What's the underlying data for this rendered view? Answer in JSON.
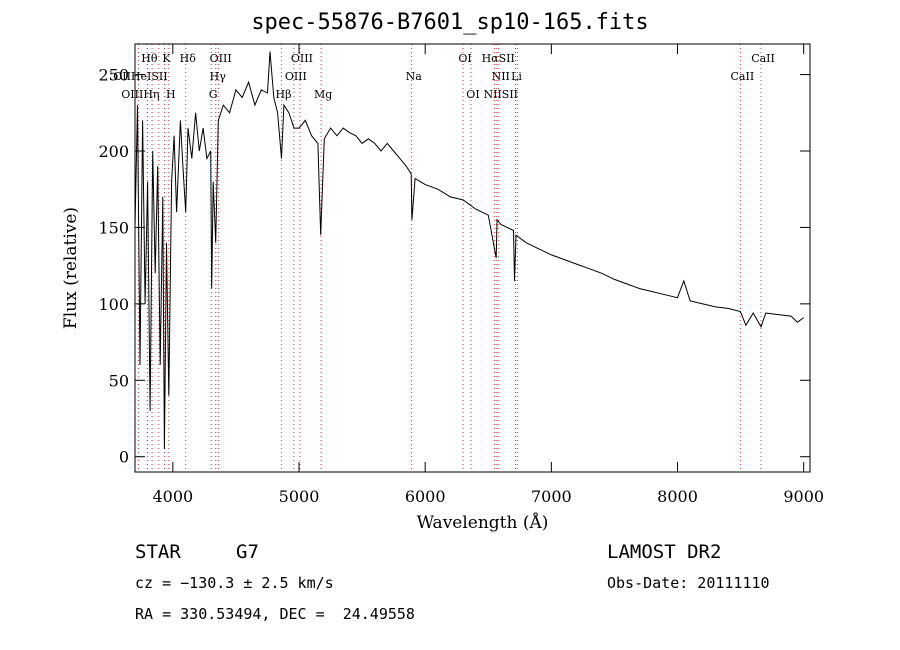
{
  "chart_data": {
    "type": "line",
    "title": "spec-55876-B7601_sp10-165.fits",
    "xlabel": "Wavelength (Å)",
    "ylabel": "Flux (relative)",
    "xlim": [
      3700,
      9050
    ],
    "ylim": [
      -10,
      270
    ],
    "x_ticks": [
      4000,
      5000,
      6000,
      7000,
      8000,
      9000
    ],
    "y_ticks": [
      0,
      50,
      100,
      150,
      200,
      250
    ],
    "grid": false,
    "series": [
      {
        "color": "#000000",
        "x": [
          3700,
          3720,
          3740,
          3760,
          3780,
          3800,
          3820,
          3840,
          3860,
          3880,
          3900,
          3920,
          3933,
          3950,
          3968,
          3990,
          4010,
          4030,
          4060,
          4080,
          4102,
          4120,
          4150,
          4180,
          4210,
          4240,
          4270,
          4300,
          4308,
          4320,
          4340,
          4360,
          4400,
          4450,
          4500,
          4550,
          4600,
          4650,
          4700,
          4750,
          4770,
          4800,
          4830,
          4861,
          4880,
          4920,
          4960,
          5000,
          5050,
          5100,
          5150,
          5172,
          5183,
          5200,
          5250,
          5300,
          5350,
          5400,
          5450,
          5500,
          5550,
          5600,
          5650,
          5700,
          5750,
          5800,
          5850,
          5889,
          5895,
          5920,
          6000,
          6100,
          6200,
          6300,
          6400,
          6500,
          6563,
          6570,
          6600,
          6700,
          6708,
          6720,
          6800,
          6900,
          7000,
          7100,
          7200,
          7300,
          7400,
          7500,
          7600,
          7700,
          7800,
          7900,
          8000,
          8050,
          8100,
          8200,
          8300,
          8400,
          8498,
          8542,
          8600,
          8662,
          8700,
          8800,
          8900,
          8950,
          9000
        ],
        "y": [
          150,
          230,
          60,
          220,
          100,
          180,
          30,
          200,
          120,
          190,
          60,
          170,
          5,
          140,
          40,
          180,
          210,
          160,
          220,
          190,
          160,
          215,
          195,
          225,
          200,
          215,
          195,
          200,
          110,
          180,
          140,
          220,
          230,
          225,
          240,
          235,
          245,
          230,
          240,
          238,
          265,
          235,
          225,
          195,
          230,
          225,
          215,
          215,
          220,
          210,
          205,
          145,
          170,
          208,
          215,
          210,
          215,
          212,
          210,
          205,
          208,
          205,
          200,
          205,
          200,
          195,
          190,
          185,
          155,
          182,
          178,
          175,
          170,
          168,
          162,
          158,
          130,
          155,
          152,
          148,
          115,
          145,
          140,
          136,
          132,
          129,
          126,
          123,
          120,
          116,
          113,
          110,
          108,
          106,
          104,
          115,
          102,
          100,
          98,
          97,
          95,
          86,
          94,
          85,
          94,
          93,
          92,
          88,
          91
        ]
      }
    ],
    "spectral_lines": [
      {
        "label": "Hθ",
        "x": 3798,
        "row": 0
      },
      {
        "label": "K",
        "x": 3934,
        "row": 0
      },
      {
        "label": "Hδ",
        "x": 4102,
        "row": 0
      },
      {
        "label": "OIII",
        "x": 4363,
        "row": 0
      },
      {
        "label": "OIII",
        "x": 5007,
        "row": 0
      },
      {
        "label": "OI",
        "x": 6300,
        "row": 0
      },
      {
        "label": "HαSII",
        "x": 6563,
        "row": 0
      },
      {
        "label": "CaII",
        "x": 8662,
        "row": 0
      },
      {
        "label": "OIIHeISII",
        "x": 3727,
        "row": 1
      },
      {
        "label": "Hγ",
        "x": 4340,
        "row": 1
      },
      {
        "label": "OIII",
        "x": 4959,
        "row": 1
      },
      {
        "label": "Na",
        "x": 5893,
        "row": 1
      },
      {
        "label": "NII",
        "x": 6583,
        "row": 1
      },
      {
        "label": "Li",
        "x": 6708,
        "row": 1
      },
      {
        "label": "CaII",
        "x": 8498,
        "row": 1
      },
      {
        "label": "OIIIHη",
        "x": 3727,
        "row": 2
      },
      {
        "label": "H",
        "x": 3968,
        "row": 2
      },
      {
        "label": "G",
        "x": 4304,
        "row": 2
      },
      {
        "label": "Hβ",
        "x": 4861,
        "row": 2
      },
      {
        "label": "Mg",
        "x": 5175,
        "row": 2
      },
      {
        "label": "OI",
        "x": 6363,
        "row": 2
      },
      {
        "label": "NIISII",
        "x": 6583,
        "row": 2
      }
    ],
    "line_positions": [
      3727,
      3798,
      3835,
      3889,
      3934,
      3968,
      4102,
      4304,
      4340,
      4363,
      4861,
      4959,
      5007,
      5175,
      5893,
      6300,
      6363,
      6548,
      6563,
      6583,
      6716,
      6731,
      8498,
      8662
    ]
  },
  "info": {
    "class_label": "STAR",
    "subclass_label": "G7",
    "cz": "cz = −130.3 ± 2.5 km/s",
    "radec": "RA = 330.53494, DEC =  24.49558",
    "survey": "LAMOST DR2",
    "obs_date": "Obs-Date: 20111110"
  }
}
